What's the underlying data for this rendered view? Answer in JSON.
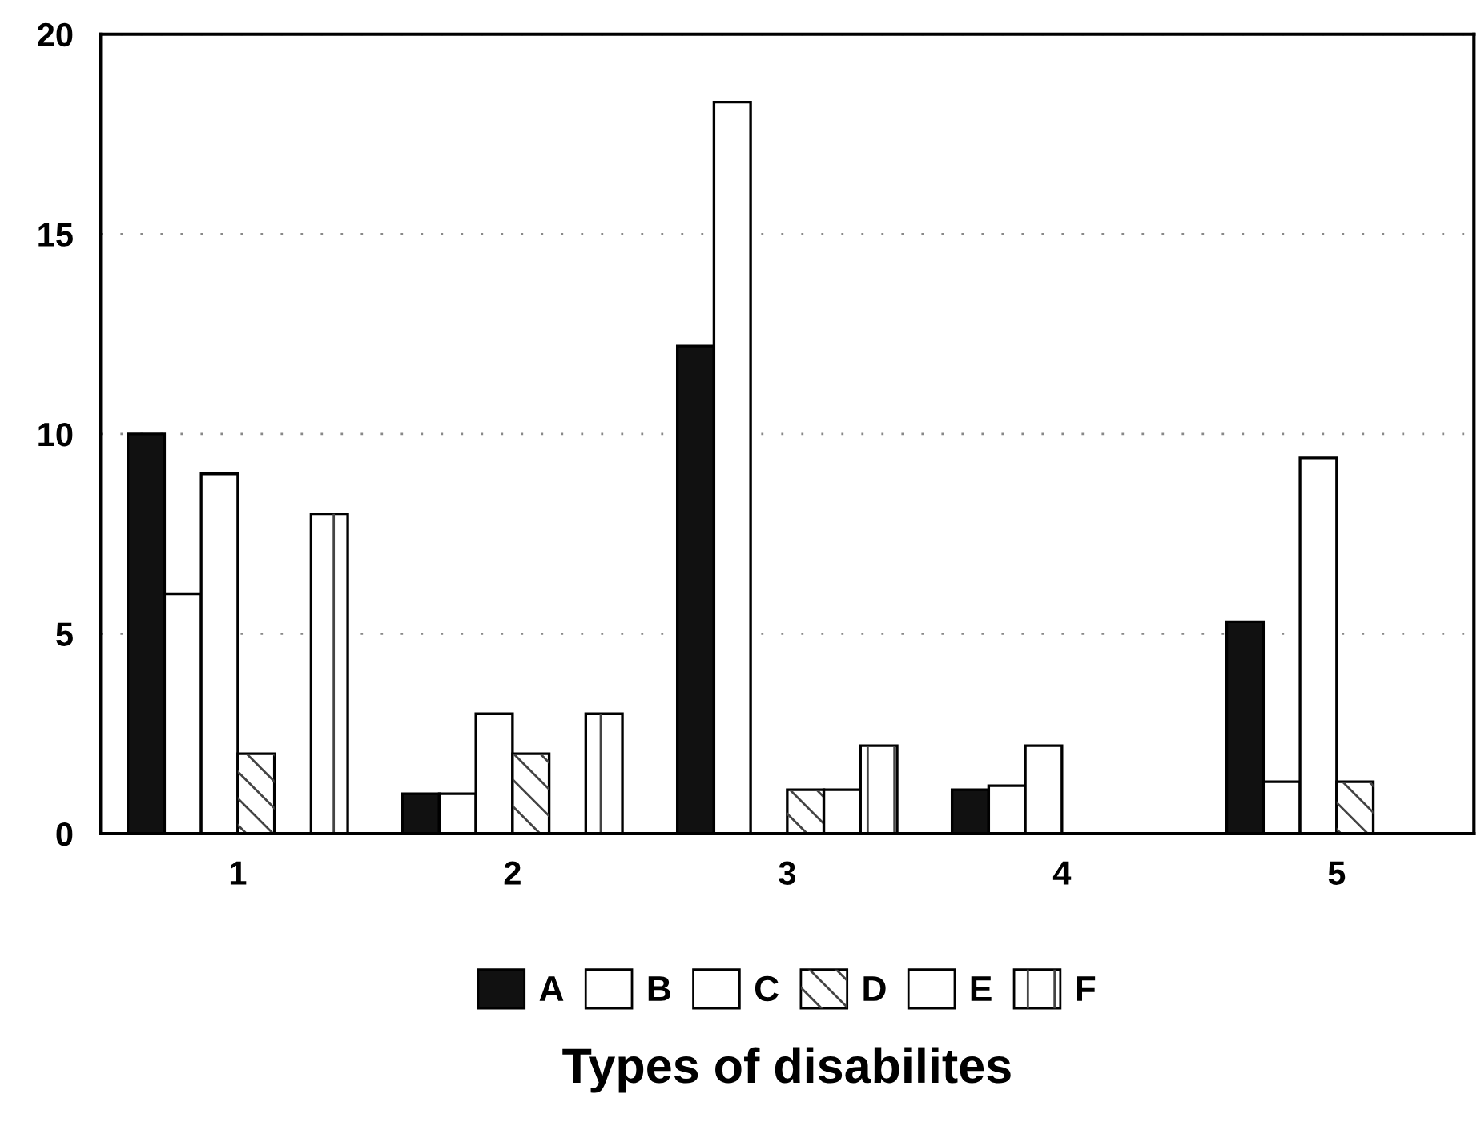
{
  "chart_data": {
    "type": "bar",
    "xlabel": "Types of disabilites",
    "categories": [
      "1",
      "2",
      "3",
      "4",
      "5"
    ],
    "series": [
      {
        "name": "A",
        "color": "#111111",
        "values": [
          10,
          1,
          12.2,
          1.1,
          5.3
        ]
      },
      {
        "name": "B",
        "color": "#ffffff",
        "values": [
          6,
          1,
          18.3,
          1.2,
          1.3
        ]
      },
      {
        "name": "C",
        "color": "#ffffff",
        "values": [
          9,
          3,
          null,
          2.2,
          9.4
        ]
      },
      {
        "name": "D",
        "color": "#ffffff",
        "values": [
          2,
          2,
          1.1,
          null,
          1.3
        ]
      },
      {
        "name": "E",
        "color": "#ffffff",
        "values": [
          null,
          null,
          1.1,
          null,
          null
        ]
      },
      {
        "name": "F",
        "color": "#ffffff",
        "values": [
          8,
          3,
          2.2,
          null,
          null
        ]
      }
    ],
    "ylim": [
      0,
      20
    ],
    "yticks": [
      0,
      5,
      10,
      15,
      20
    ],
    "grid": "y",
    "legend": "bottom"
  }
}
